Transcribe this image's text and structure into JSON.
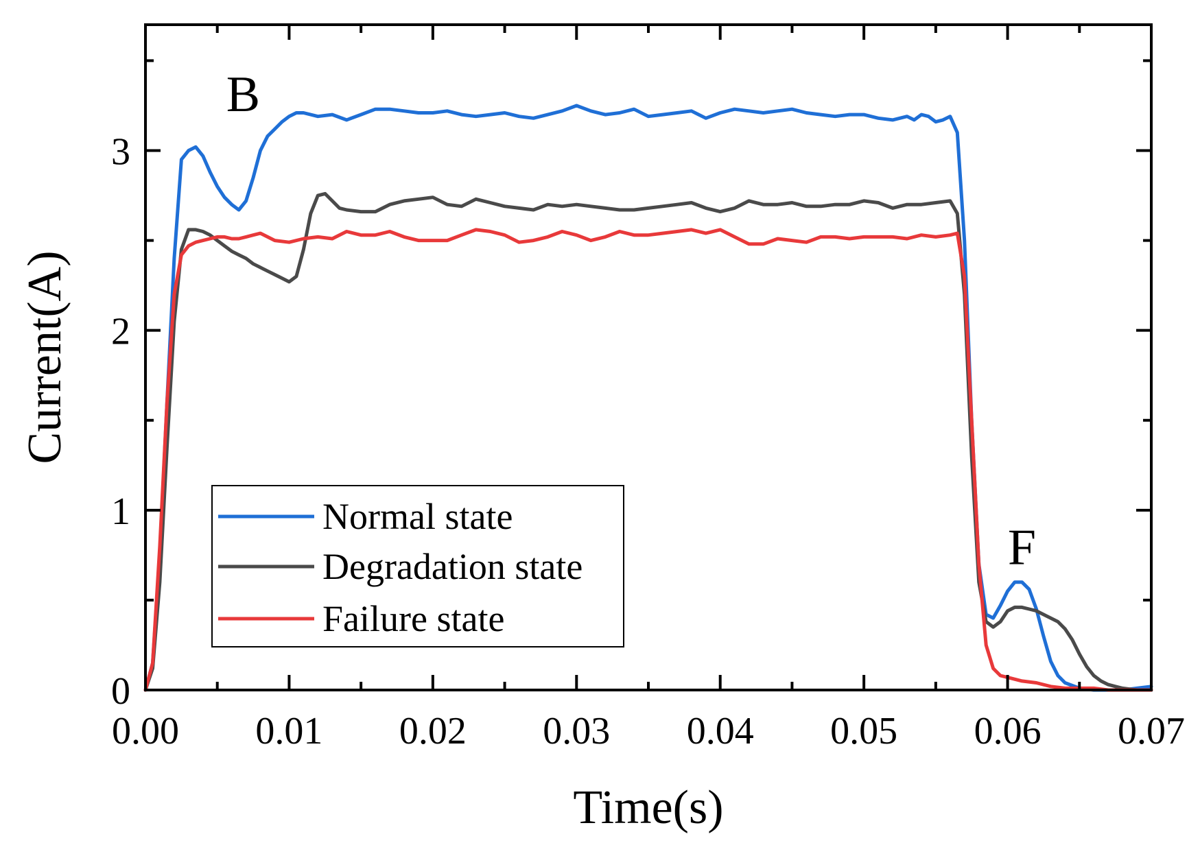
{
  "chart_data": {
    "type": "line",
    "title": "",
    "xlabel": "Time(s)",
    "ylabel": "Current(A)",
    "xlim": [
      0,
      0.07
    ],
    "ylim": [
      0,
      3.7
    ],
    "xticks": [
      "0.00",
      "0.01",
      "0.02",
      "0.03",
      "0.04",
      "0.05",
      "0.06",
      "0.07"
    ],
    "yticks": [
      "0",
      "1",
      "2",
      "3"
    ],
    "grid": false,
    "legend_position": "lower-left",
    "annotations": [
      {
        "text": "B",
        "x": 0.0068,
        "y": 3.22
      },
      {
        "text": "F",
        "x": 0.061,
        "y": 0.7
      }
    ],
    "series": [
      {
        "name": "Normal state",
        "color": "#1f6fd6",
        "x": [
          0,
          0.0005,
          0.001,
          0.0015,
          0.002,
          0.0025,
          0.003,
          0.0035,
          0.004,
          0.0045,
          0.005,
          0.0055,
          0.006,
          0.0065,
          0.007,
          0.0075,
          0.008,
          0.0085,
          0.009,
          0.0095,
          0.01,
          0.0105,
          0.011,
          0.012,
          0.013,
          0.014,
          0.015,
          0.016,
          0.017,
          0.018,
          0.019,
          0.02,
          0.021,
          0.022,
          0.023,
          0.024,
          0.025,
          0.026,
          0.027,
          0.028,
          0.029,
          0.03,
          0.031,
          0.032,
          0.033,
          0.034,
          0.035,
          0.036,
          0.037,
          0.038,
          0.039,
          0.04,
          0.041,
          0.042,
          0.043,
          0.044,
          0.045,
          0.046,
          0.047,
          0.048,
          0.049,
          0.05,
          0.051,
          0.052,
          0.053,
          0.0535,
          0.054,
          0.0545,
          0.055,
          0.0555,
          0.056,
          0.0565,
          0.057,
          0.0575,
          0.058,
          0.0585,
          0.059,
          0.0595,
          0.06,
          0.0605,
          0.061,
          0.0615,
          0.062,
          0.0625,
          0.063,
          0.0635,
          0.064,
          0.065,
          0.066,
          0.067,
          0.068,
          0.069,
          0.07
        ],
        "y": [
          0.0,
          0.15,
          0.75,
          1.6,
          2.4,
          2.95,
          3.0,
          3.02,
          2.97,
          2.88,
          2.8,
          2.74,
          2.7,
          2.67,
          2.72,
          2.85,
          3.0,
          3.08,
          3.12,
          3.16,
          3.19,
          3.21,
          3.21,
          3.19,
          3.2,
          3.17,
          3.2,
          3.23,
          3.23,
          3.22,
          3.21,
          3.21,
          3.22,
          3.2,
          3.19,
          3.2,
          3.21,
          3.19,
          3.18,
          3.2,
          3.22,
          3.25,
          3.22,
          3.2,
          3.21,
          3.23,
          3.19,
          3.2,
          3.21,
          3.22,
          3.18,
          3.21,
          3.23,
          3.22,
          3.21,
          3.22,
          3.23,
          3.21,
          3.2,
          3.19,
          3.2,
          3.2,
          3.18,
          3.17,
          3.19,
          3.17,
          3.2,
          3.19,
          3.16,
          3.17,
          3.19,
          3.1,
          2.5,
          1.5,
          0.7,
          0.42,
          0.4,
          0.47,
          0.55,
          0.6,
          0.6,
          0.56,
          0.45,
          0.3,
          0.16,
          0.08,
          0.04,
          0.01,
          0.0,
          0.0,
          0.0,
          0.01,
          0.02
        ]
      },
      {
        "name": "Degradation state",
        "color": "#4a4a4a",
        "x": [
          0,
          0.0005,
          0.001,
          0.0015,
          0.002,
          0.0025,
          0.003,
          0.0035,
          0.004,
          0.0045,
          0.005,
          0.0055,
          0.006,
          0.0065,
          0.007,
          0.0075,
          0.008,
          0.0085,
          0.009,
          0.0095,
          0.01,
          0.0105,
          0.011,
          0.0115,
          0.012,
          0.0125,
          0.013,
          0.0135,
          0.014,
          0.015,
          0.016,
          0.017,
          0.018,
          0.019,
          0.02,
          0.021,
          0.022,
          0.023,
          0.024,
          0.025,
          0.026,
          0.027,
          0.028,
          0.029,
          0.03,
          0.031,
          0.032,
          0.033,
          0.034,
          0.035,
          0.036,
          0.037,
          0.038,
          0.039,
          0.04,
          0.041,
          0.042,
          0.043,
          0.044,
          0.045,
          0.046,
          0.047,
          0.048,
          0.049,
          0.05,
          0.051,
          0.052,
          0.053,
          0.054,
          0.055,
          0.056,
          0.0565,
          0.057,
          0.0575,
          0.058,
          0.0585,
          0.059,
          0.0595,
          0.06,
          0.0605,
          0.061,
          0.0615,
          0.062,
          0.0625,
          0.063,
          0.0635,
          0.064,
          0.0645,
          0.065,
          0.0655,
          0.066,
          0.0665,
          0.067,
          0.0675,
          0.068,
          0.069,
          0.07
        ],
        "y": [
          0.0,
          0.12,
          0.6,
          1.35,
          2.05,
          2.45,
          2.56,
          2.56,
          2.55,
          2.53,
          2.5,
          2.47,
          2.44,
          2.42,
          2.4,
          2.37,
          2.35,
          2.33,
          2.31,
          2.29,
          2.27,
          2.3,
          2.45,
          2.65,
          2.75,
          2.76,
          2.72,
          2.68,
          2.67,
          2.66,
          2.66,
          2.7,
          2.72,
          2.73,
          2.74,
          2.7,
          2.69,
          2.73,
          2.71,
          2.69,
          2.68,
          2.67,
          2.7,
          2.69,
          2.7,
          2.69,
          2.68,
          2.67,
          2.67,
          2.68,
          2.69,
          2.7,
          2.71,
          2.68,
          2.66,
          2.68,
          2.72,
          2.7,
          2.7,
          2.71,
          2.69,
          2.69,
          2.7,
          2.7,
          2.72,
          2.71,
          2.68,
          2.7,
          2.7,
          2.71,
          2.72,
          2.65,
          2.2,
          1.3,
          0.6,
          0.38,
          0.35,
          0.38,
          0.44,
          0.46,
          0.46,
          0.45,
          0.44,
          0.42,
          0.4,
          0.38,
          0.34,
          0.28,
          0.2,
          0.13,
          0.08,
          0.05,
          0.03,
          0.02,
          0.01,
          0.0,
          0.0
        ]
      },
      {
        "name": "Failure state",
        "color": "#e8393a",
        "x": [
          0,
          0.0005,
          0.001,
          0.0015,
          0.002,
          0.0025,
          0.003,
          0.0035,
          0.004,
          0.0045,
          0.005,
          0.0055,
          0.006,
          0.0065,
          0.007,
          0.0075,
          0.008,
          0.009,
          0.01,
          0.011,
          0.012,
          0.013,
          0.014,
          0.015,
          0.016,
          0.017,
          0.018,
          0.019,
          0.02,
          0.021,
          0.022,
          0.023,
          0.024,
          0.025,
          0.026,
          0.027,
          0.028,
          0.029,
          0.03,
          0.031,
          0.032,
          0.033,
          0.034,
          0.035,
          0.036,
          0.037,
          0.038,
          0.039,
          0.04,
          0.041,
          0.042,
          0.043,
          0.044,
          0.045,
          0.046,
          0.047,
          0.048,
          0.049,
          0.05,
          0.051,
          0.052,
          0.053,
          0.054,
          0.055,
          0.056,
          0.0565,
          0.057,
          0.0575,
          0.058,
          0.0585,
          0.059,
          0.0595,
          0.06,
          0.061,
          0.062,
          0.063,
          0.064,
          0.065,
          0.066,
          0.067,
          0.068,
          0.069,
          0.07
        ],
        "y": [
          0.0,
          0.15,
          0.8,
          1.6,
          2.2,
          2.42,
          2.47,
          2.49,
          2.5,
          2.51,
          2.52,
          2.52,
          2.51,
          2.51,
          2.52,
          2.53,
          2.54,
          2.5,
          2.49,
          2.51,
          2.52,
          2.51,
          2.55,
          2.53,
          2.53,
          2.55,
          2.52,
          2.5,
          2.5,
          2.5,
          2.53,
          2.56,
          2.55,
          2.53,
          2.49,
          2.5,
          2.52,
          2.55,
          2.53,
          2.5,
          2.52,
          2.55,
          2.53,
          2.53,
          2.54,
          2.55,
          2.56,
          2.54,
          2.56,
          2.52,
          2.48,
          2.48,
          2.51,
          2.5,
          2.49,
          2.52,
          2.52,
          2.51,
          2.52,
          2.52,
          2.52,
          2.51,
          2.53,
          2.52,
          2.53,
          2.54,
          2.3,
          1.5,
          0.7,
          0.25,
          0.12,
          0.08,
          0.07,
          0.05,
          0.04,
          0.02,
          0.01,
          0.01,
          0.01,
          0.0,
          0.0,
          0.0,
          0.0
        ]
      }
    ]
  }
}
